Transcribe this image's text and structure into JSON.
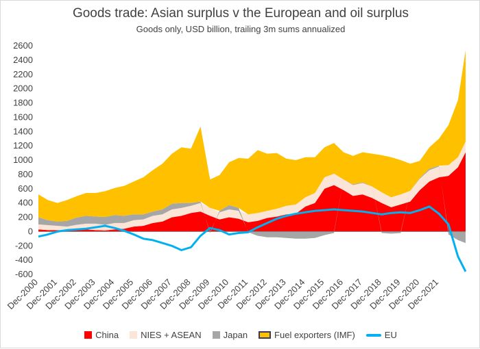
{
  "chart_data": {
    "type": "area",
    "title": "Goods trade: Asian surplus v the European and oil surplus",
    "subtitle": "Goods only, USD billion, trailing 3m sums annualized",
    "ylim": [
      -600,
      2600
    ],
    "yticks": [
      2600,
      2400,
      2200,
      2000,
      1800,
      1600,
      1400,
      1200,
      1000,
      800,
      600,
      400,
      200,
      0,
      -200,
      -400,
      -600
    ],
    "x_tick_labels": [
      "Dec-2000",
      "Dec-2001",
      "Dec-2002",
      "Dec-2003",
      "Dec-2004",
      "Dec-2005",
      "Dec-2006",
      "Dec-2007",
      "Dec-2008",
      "Dec-2009",
      "Dec-2010",
      "Dec-2011",
      "Dec-2012",
      "Dec-2013",
      "Dec-2014",
      "Dec-2015",
      "Dec-2016",
      "Dec-2017",
      "Dec-2018",
      "Dec-2019",
      "Dec-2020",
      "Dec-2021"
    ],
    "x": [
      2000.0,
      2000.5,
      2001.0,
      2001.5,
      2002.0,
      2002.5,
      2003.0,
      2003.5,
      2004.0,
      2004.5,
      2005.0,
      2005.5,
      2006.0,
      2006.5,
      2007.0,
      2007.5,
      2008.0,
      2008.5,
      2009.0,
      2009.5,
      2010.0,
      2010.5,
      2011.0,
      2011.5,
      2012.0,
      2012.5,
      2013.0,
      2013.5,
      2014.0,
      2014.5,
      2015.0,
      2015.5,
      2016.0,
      2016.5,
      2017.0,
      2017.5,
      2018.0,
      2018.5,
      2019.0,
      2019.5,
      2020.0,
      2020.5,
      2021.0,
      2021.5,
      2022.0,
      2022.4
    ],
    "stacked": true,
    "series": [
      {
        "name": "China",
        "color": "#ff0000",
        "kind": "area",
        "values": [
          30,
          20,
          20,
          20,
          25,
          30,
          20,
          15,
          30,
          40,
          70,
          80,
          120,
          140,
          200,
          220,
          260,
          280,
          220,
          170,
          200,
          180,
          130,
          150,
          190,
          210,
          240,
          250,
          350,
          400,
          600,
          650,
          580,
          500,
          520,
          470,
          400,
          340,
          380,
          420,
          580,
          700,
          760,
          780,
          900,
          1110
        ]
      },
      {
        "name": "NIES + ASEAN",
        "color": "#fbe5d6",
        "kind": "area",
        "values": [
          70,
          70,
          60,
          50,
          70,
          80,
          90,
          80,
          90,
          80,
          90,
          90,
          100,
          100,
          110,
          110,
          100,
          120,
          110,
          100,
          110,
          110,
          110,
          110,
          100,
          110,
          120,
          130,
          130,
          140,
          160,
          160,
          150,
          150,
          160,
          160,
          150,
          140,
          140,
          150,
          160,
          160,
          150,
          150,
          140,
          150
        ]
      },
      {
        "name": "Japan",
        "color": "#a6a6a6",
        "kind": "area",
        "values": [
          100,
          70,
          60,
          80,
          100,
          110,
          100,
          110,
          110,
          100,
          80,
          70,
          60,
          70,
          80,
          70,
          40,
          20,
          -20,
          20,
          60,
          40,
          -10,
          -60,
          -80,
          -80,
          -90,
          -100,
          -100,
          -90,
          -50,
          -20,
          0,
          10,
          10,
          0,
          -20,
          -30,
          -20,
          0,
          10,
          20,
          10,
          -40,
          -120,
          -160
        ]
      },
      {
        "name": "Fuel exporters (IMF)",
        "color": "#ffc000",
        "kind": "area",
        "values": [
          320,
          280,
          260,
          290,
          300,
          320,
          330,
          360,
          380,
          420,
          460,
          520,
          580,
          640,
          700,
          780,
          760,
          1050,
          400,
          500,
          600,
          700,
          780,
          880,
          800,
          780,
          660,
          620,
          560,
          500,
          420,
          430,
          380,
          400,
          420,
          460,
          520,
          560,
          480,
          380,
          240,
          300,
          380,
          560,
          800,
          1280
        ]
      },
      {
        "name": "EU",
        "color": "#00b0f0",
        "kind": "line",
        "values": [
          -70,
          -40,
          0,
          20,
          30,
          40,
          60,
          80,
          50,
          10,
          -40,
          -100,
          -120,
          -160,
          -200,
          -260,
          -220,
          -60,
          50,
          20,
          -40,
          -20,
          -10,
          60,
          120,
          180,
          220,
          250,
          270,
          290,
          300,
          310,
          300,
          290,
          280,
          260,
          240,
          260,
          270,
          260,
          300,
          350,
          250,
          100,
          -350,
          -560
        ]
      }
    ]
  }
}
